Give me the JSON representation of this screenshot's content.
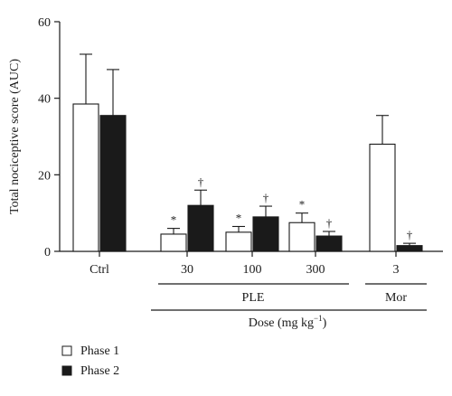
{
  "chart_data": {
    "type": "bar",
    "ylabel": "Total nociceptive score (AUC)",
    "ylim": [
      0,
      60
    ],
    "yticks": [
      0,
      20,
      40,
      60
    ],
    "categories": [
      "Ctrl",
      "30",
      "100",
      "300",
      "3"
    ],
    "series": [
      {
        "name": "Phase 1",
        "color": "#ffffff",
        "values": [
          38.5,
          4.5,
          5.0,
          7.5,
          28.0
        ],
        "errors": [
          13.0,
          1.5,
          1.5,
          2.5,
          7.5
        ],
        "marks": [
          "",
          "*",
          "*",
          "*",
          ""
        ]
      },
      {
        "name": "Phase 2",
        "color": "#1a1a1a",
        "values": [
          35.5,
          12.0,
          9.0,
          4.0,
          1.5
        ],
        "errors": [
          12.0,
          4.0,
          2.8,
          1.2,
          0.6
        ],
        "marks": [
          "",
          "†",
          "†",
          "†",
          "†"
        ]
      }
    ],
    "groups": [
      {
        "label": "PLE"
      },
      {
        "label": "Mor"
      }
    ],
    "dose_label": "Dose (mg kg",
    "dose_unit_exp": "−1",
    "dose_label_end": ")",
    "legend_position": "bottom-left"
  }
}
